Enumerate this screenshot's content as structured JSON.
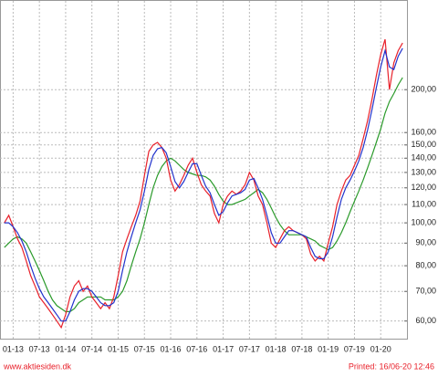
{
  "chart_data": {
    "type": "line",
    "x": [
      "11-12",
      "12-12",
      "01-13",
      "02-13",
      "03-13",
      "04-13",
      "05-13",
      "06-13",
      "07-13",
      "08-13",
      "09-13",
      "10-13",
      "11-13",
      "12-13",
      "01-14",
      "02-14",
      "03-14",
      "04-14",
      "05-14",
      "06-14",
      "07-14",
      "08-14",
      "09-14",
      "10-14",
      "11-14",
      "12-14",
      "01-15",
      "02-15",
      "03-15",
      "04-15",
      "05-15",
      "06-15",
      "07-15",
      "08-15",
      "09-15",
      "10-15",
      "11-15",
      "12-15",
      "01-16",
      "02-16",
      "03-16",
      "04-16",
      "05-16",
      "06-16",
      "07-16",
      "08-16",
      "09-16",
      "10-16",
      "11-16",
      "12-16",
      "01-17",
      "02-17",
      "03-17",
      "04-17",
      "05-17",
      "06-17",
      "07-17",
      "08-17",
      "09-17",
      "10-17",
      "11-17",
      "12-17",
      "01-18",
      "02-18",
      "03-18",
      "04-18",
      "05-18",
      "06-18",
      "07-18",
      "08-18",
      "09-18",
      "10-18",
      "11-18",
      "12-18",
      "01-19",
      "02-19",
      "03-19",
      "04-19",
      "05-19",
      "06-19",
      "07-19",
      "08-19",
      "09-19",
      "10-19",
      "11-19",
      "12-19",
      "01-20",
      "02-20",
      "03-20",
      "04-20",
      "05-20",
      "06-20"
    ],
    "xlim": [
      "10-12",
      "07-20"
    ],
    "xticks": [
      "01-13",
      "07-13",
      "01-14",
      "07-14",
      "01-15",
      "07-15",
      "01-16",
      "07-16",
      "01-17",
      "07-17",
      "01-18",
      "07-18",
      "01-19",
      "07-19",
      "01-20"
    ],
    "ylim": [
      55,
      307
    ],
    "log_y": true,
    "grid": true,
    "yticks": [
      {
        "value": 60,
        "label": "60,00"
      },
      {
        "value": 70,
        "label": "70,00"
      },
      {
        "value": 80,
        "label": "80,00"
      },
      {
        "value": 90,
        "label": "90,00"
      },
      {
        "value": 100,
        "label": "100,00"
      },
      {
        "value": 110,
        "label": "110,00"
      },
      {
        "value": 120,
        "label": "120,00"
      },
      {
        "value": 130,
        "label": "130,00"
      },
      {
        "value": 140,
        "label": "140,00"
      },
      {
        "value": 150,
        "label": "150,00"
      },
      {
        "value": 160,
        "label": "160,00"
      },
      {
        "value": 200,
        "label": "200,00"
      }
    ],
    "series": [
      {
        "color": "#2a9a2a",
        "values": [
          88,
          90,
          92,
          93,
          92,
          90,
          86,
          82,
          78,
          74,
          70,
          67,
          65,
          64,
          63,
          63,
          64,
          66,
          67,
          68,
          68,
          68,
          68,
          67,
          67,
          67,
          68,
          70,
          74,
          80,
          86,
          92,
          100,
          110,
          120,
          128,
          134,
          138,
          140,
          138,
          135,
          132,
          130,
          129,
          128,
          128,
          127,
          125,
          121,
          116,
          112,
          110,
          110,
          111,
          112,
          113,
          115,
          117,
          119,
          117,
          113,
          108,
          103,
          99,
          96,
          94,
          94,
          94,
          94,
          93,
          92,
          91,
          89,
          88,
          87,
          88,
          91,
          95,
          100,
          106,
          112,
          118,
          125,
          133,
          142,
          152,
          163,
          177,
          188,
          196,
          205,
          213
        ]
      },
      {
        "color": "#e8202a",
        "values": [
          100,
          104,
          98,
          92,
          88,
          82,
          76,
          72,
          68,
          66,
          64,
          62,
          60,
          58,
          62,
          68,
          72,
          74,
          70,
          72,
          68,
          66,
          64,
          66,
          64,
          68,
          76,
          86,
          92,
          98,
          104,
          112,
          128,
          145,
          150,
          152,
          148,
          140,
          125,
          118,
          122,
          128,
          135,
          140,
          130,
          122,
          118,
          115,
          105,
          100,
          110,
          115,
          118,
          116,
          118,
          122,
          130,
          125,
          115,
          110,
          100,
          90,
          88,
          92,
          96,
          98,
          96,
          95,
          94,
          92,
          85,
          82,
          84,
          82,
          90,
          98,
          110,
          118,
          125,
          128,
          135,
          142,
          155,
          170,
          190,
          215,
          240,
          260,
          200,
          230,
          245,
          255
        ]
      },
      {
        "color": "#2233cc",
        "values": [
          100,
          100,
          98,
          95,
          91,
          86,
          80,
          75,
          71,
          68,
          66,
          64,
          62,
          60,
          60,
          63,
          67,
          70,
          71,
          71,
          70,
          68,
          66,
          65,
          65,
          66,
          70,
          78,
          86,
          93,
          100,
          107,
          118,
          132,
          142,
          147,
          148,
          144,
          134,
          124,
          120,
          124,
          130,
          136,
          136,
          128,
          121,
          117,
          110,
          104,
          106,
          111,
          115,
          116,
          117,
          119,
          125,
          126,
          120,
          113,
          104,
          95,
          90,
          90,
          93,
          96,
          96,
          95,
          94,
          93,
          88,
          84,
          83,
          83,
          86,
          93,
          103,
          113,
          120,
          125,
          131,
          138,
          148,
          162,
          180,
          202,
          225,
          245,
          225,
          222,
          238,
          248
        ]
      }
    ],
    "source": "www.aktiesiden.dk",
    "printed": "Printed: 16/06-20 12:46"
  }
}
